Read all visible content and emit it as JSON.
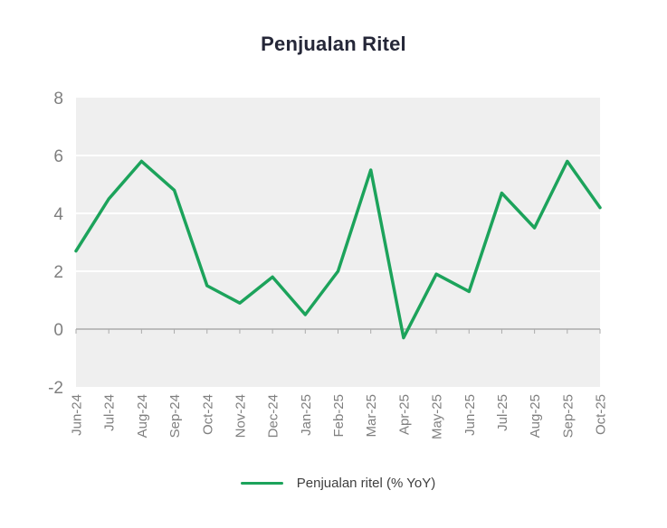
{
  "title": "Penjualan Ritel",
  "legend": {
    "label": "Penjualan ritel (% YoY)"
  },
  "colors": {
    "line_green": "#1CA35B",
    "plot_background": "#efefef",
    "gridline": "#ffffff",
    "zero_axis": "#ababab",
    "axis_text": "#7f7f7f",
    "title_text": "#252738",
    "legend_text": "#3f3f3f"
  },
  "chart_data": {
    "type": "line",
    "title": "Penjualan Ritel",
    "categories": [
      "Jun-24",
      "Jul-24",
      "Aug-24",
      "Sep-24",
      "Oct-24",
      "Nov-24",
      "Dec-24",
      "Jan-25",
      "Feb-25",
      "Mar-25",
      "Apr-25",
      "May-25",
      "Jun-25",
      "Jul-25",
      "Aug-25",
      "Sep-25",
      "Oct-25"
    ],
    "series": [
      {
        "name": "Penjualan ritel (% YoY)",
        "color": "#1CA35B",
        "values": [
          2.7,
          4.5,
          5.8,
          4.8,
          1.5,
          0.9,
          1.8,
          0.5,
          2.0,
          5.5,
          -0.3,
          1.9,
          1.3,
          4.7,
          3.5,
          5.8,
          4.2
        ]
      }
    ],
    "ylim": [
      -2,
      8
    ],
    "yticks": [
      8,
      6,
      4,
      2,
      0,
      -2
    ],
    "xlabel": "",
    "ylabel": "",
    "grid": true,
    "legend_position": "bottom"
  }
}
